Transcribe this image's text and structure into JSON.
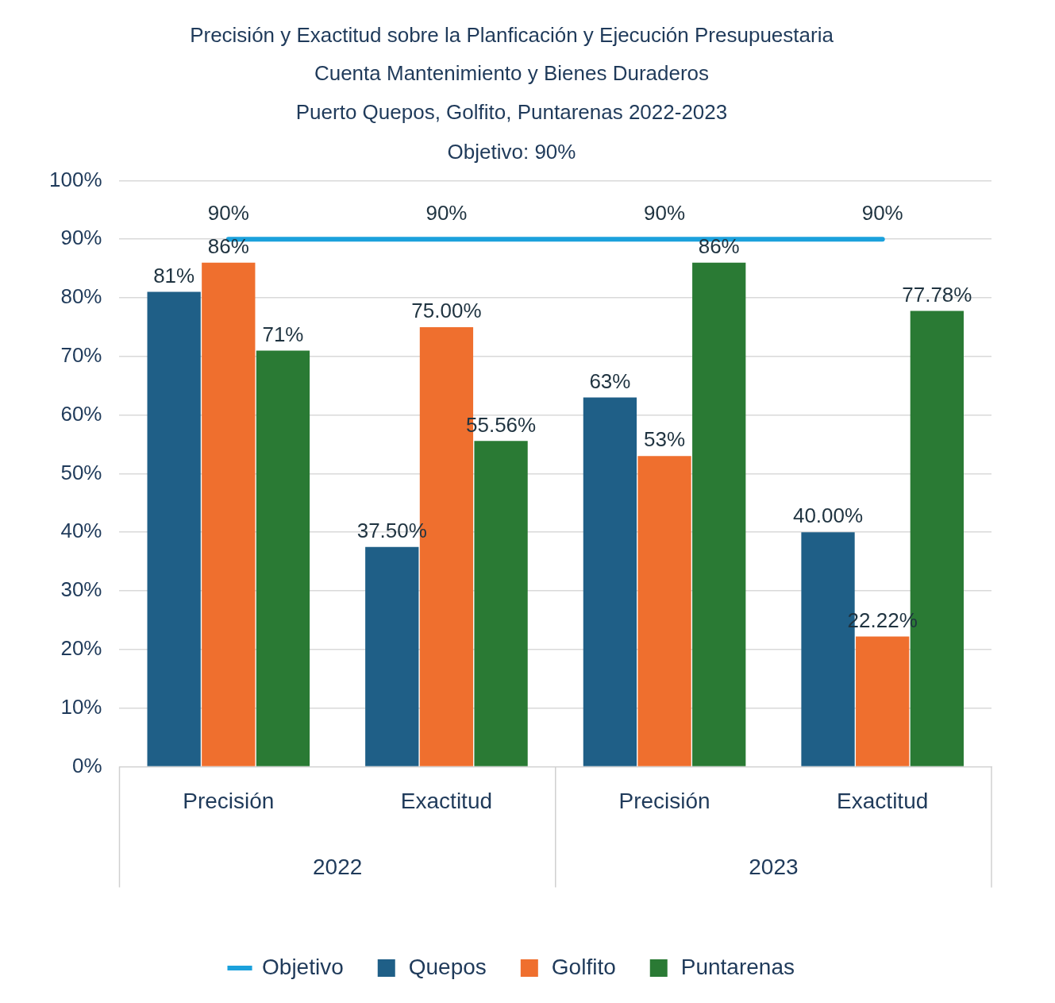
{
  "chart_data": {
    "type": "bar",
    "title": "Precisión y Exactitud sobre la Planficación y Ejecución Presupuestaria",
    "subtitle": "Cuenta Mantenimiento y Bienes Duraderos\nPuerto Quepos, Golfito, Puntarenas 2022-2023\nObjetivo: 90%",
    "categories": [
      "Precisión",
      "Exactitud",
      "Precisión",
      "Exactitud"
    ],
    "annotations": [
      "2022",
      "2023"
    ],
    "series": [
      {
        "name": "Quepos",
        "color": "#1f5f87",
        "values": [
          81,
          37.5,
          63,
          40
        ],
        "value_labels": [
          "81%",
          "37.50%",
          "63%",
          "40.00%"
        ]
      },
      {
        "name": "Golfito",
        "color": "#ef6f2e",
        "values": [
          86,
          75,
          53,
          22.22
        ],
        "value_labels": [
          "86%",
          "75.00%",
          "53%",
          "22.22%"
        ]
      },
      {
        "name": "Puntarenas",
        "color": "#2a7a34",
        "values": [
          71,
          55.56,
          86,
          77.78
        ],
        "value_labels": [
          "71%",
          "55.56%",
          "86%",
          "77.78%"
        ]
      },
      {
        "name": "Objetivo",
        "type": "line",
        "color": "#1ba1dc",
        "values": [
          90,
          90,
          90,
          90
        ],
        "value_labels": [
          "90%",
          "90%",
          "90%",
          "90%"
        ]
      }
    ],
    "ylim": [
      0,
      100
    ],
    "yticks": [
      {
        "value": 0,
        "label": "0%"
      },
      {
        "value": 10,
        "label": "10%"
      },
      {
        "value": 20,
        "label": "20%"
      },
      {
        "value": 30,
        "label": "30%"
      },
      {
        "value": 40,
        "label": "40%"
      },
      {
        "value": 50,
        "label": "50%"
      },
      {
        "value": 60,
        "label": "60%"
      },
      {
        "value": 70,
        "label": "70%"
      },
      {
        "value": 80,
        "label": "80%"
      },
      {
        "value": 90,
        "label": "90%"
      },
      {
        "value": 100,
        "label": "100%"
      }
    ],
    "grid": "y",
    "legend": "bottom",
    "marker": "none"
  }
}
